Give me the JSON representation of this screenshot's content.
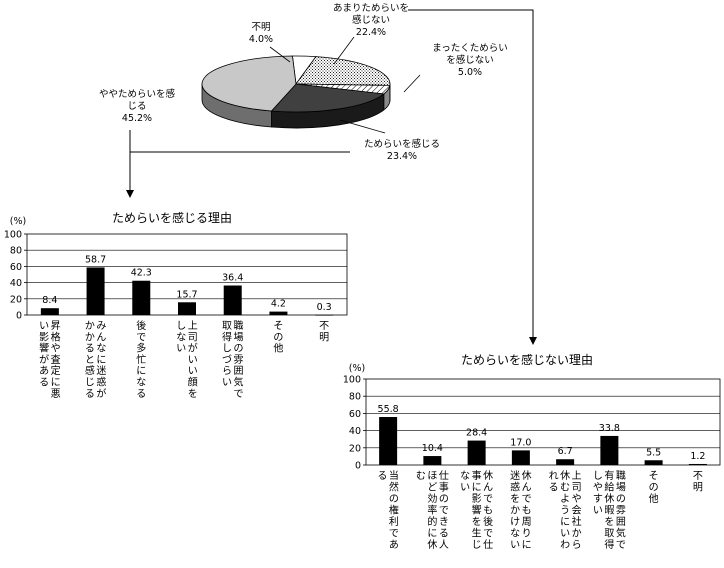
{
  "chart_data": [
    {
      "type": "pie",
      "slices": [
        {
          "label_lines": [
            "あまりためらいを",
            "感じない"
          ],
          "value_text": "22.4%",
          "value": 22.4,
          "color": "#bfbfbf",
          "pattern": "dots"
        },
        {
          "label_lines": [
            "まったくためらい",
            "を感じない"
          ],
          "value_text": "5.0%",
          "value": 5.0,
          "color": "#ffffff",
          "pattern": "hatch"
        },
        {
          "label_lines": [
            "ためらいを感じる"
          ],
          "value_text": "23.4%",
          "value": 23.4,
          "color": "#404040",
          "pattern": "none"
        },
        {
          "label_lines": [
            "ややためらいを感",
            "じる"
          ],
          "value_text": "45.2%",
          "value": 45.2,
          "color": "#c8c8c8",
          "pattern": "none"
        },
        {
          "label_lines": [
            "不明"
          ],
          "value_text": "4.0%",
          "value": 4.0,
          "color": "#ffffff",
          "pattern": "none"
        }
      ]
    },
    {
      "type": "bar",
      "title": "ためらいを感じる理由",
      "unit": "(%)",
      "ylim": [
        0,
        100
      ],
      "yticks": [
        0,
        20,
        40,
        60,
        80,
        100
      ],
      "categories": [
        [
          "昇格や査定に悪",
          "い影響がある"
        ],
        [
          "みんなに迷惑が",
          "かかると感じる"
        ],
        [
          "後で多忙になる"
        ],
        [
          "上司がいい顔を",
          "しない"
        ],
        [
          "職場の雰囲気で",
          "取得しづらい"
        ],
        [
          "その他"
        ],
        [
          "不明"
        ]
      ],
      "values": [
        8.4,
        58.7,
        42.3,
        15.7,
        36.4,
        4.2,
        0.3
      ],
      "value_labels": [
        "8.4",
        "58.7",
        "42.3",
        "15.7",
        "36.4",
        "4.2",
        "0.3"
      ]
    },
    {
      "type": "bar",
      "title": "ためらいを感じない理由",
      "unit": "(%)",
      "ylim": [
        0,
        100
      ],
      "yticks": [
        0,
        20,
        40,
        60,
        80,
        100
      ],
      "categories": [
        [
          "当然の権利であ",
          "る"
        ],
        [
          "仕事のできる人",
          "ほど効率的に休",
          "む"
        ],
        [
          "休んでも後で仕",
          "事に影響を生じ",
          "ない"
        ],
        [
          "休んでも周りに",
          "迷惑をかけない"
        ],
        [
          "上司や会社から",
          "休むようにいわ",
          "れる"
        ],
        [
          "職場の雰囲気で",
          "有給休暇を取得",
          "しやすい"
        ],
        [
          "その他"
        ],
        [
          "不明"
        ]
      ],
      "values": [
        55.8,
        10.4,
        28.4,
        17.0,
        6.7,
        33.8,
        5.5,
        1.2
      ],
      "value_labels": [
        "55.8",
        "10.4",
        "28.4",
        "17.0",
        "6.7",
        "33.8",
        "5.5",
        "1.2"
      ]
    }
  ]
}
